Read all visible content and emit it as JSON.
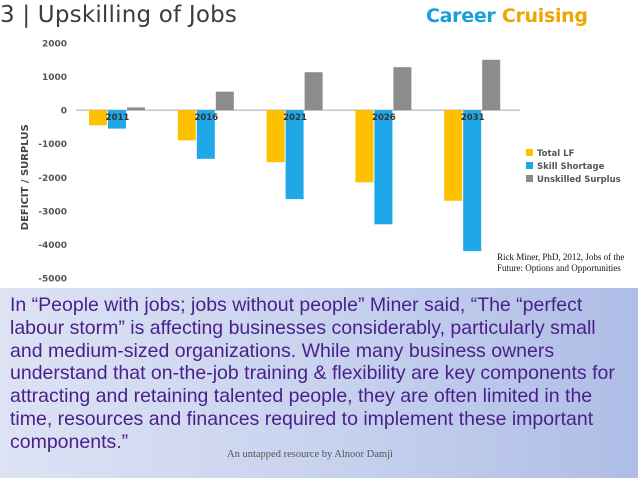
{
  "header": {
    "title": "3 | Upskilling of Jobs",
    "logo_word1": "Career",
    "logo_word2": "Cruising"
  },
  "colors": {
    "total_lf": "#ffc000",
    "skill_shortage": "#1fa8e8",
    "unskilled_surplus": "#8c8c8c",
    "quote_text": "#4b1f8a"
  },
  "chart_data": {
    "type": "bar",
    "categories": [
      "2011",
      "2016",
      "2021",
      "2026",
      "2031"
    ],
    "ylabel": "DEFICIT / SURPLUS",
    "ylim": [
      -5000,
      2000
    ],
    "yticks": [
      2000,
      1000,
      0,
      -1000,
      -2000,
      -3000,
      -4000,
      -5000
    ],
    "grid": false,
    "legend_position": "right",
    "series": [
      {
        "name": "Total LF",
        "values": [
          -450,
          -900,
          -1550,
          -2150,
          -2700
        ]
      },
      {
        "name": "Skill Shortage",
        "values": [
          -550,
          -1450,
          -2650,
          -3400,
          -4200
        ]
      },
      {
        "name": "Unskilled Surplus",
        "values": [
          80,
          550,
          1130,
          1280,
          1500
        ]
      }
    ]
  },
  "citation": "Rick Miner, PhD, 2012, Jobs of the Future: Options and Opportunities",
  "quote": "In “People with jobs; jobs without people” Miner said, “The “perfect labour storm” is affecting businesses considerably, particularly small and medium-sized organizations. While many business owners understand that on-the-job training & flexibility are key components for attracting and retaining talented people, they are often limited in the time, resources and finances required to implement these important components.”",
  "footer": "An untapped resource by Alnoor Damji"
}
